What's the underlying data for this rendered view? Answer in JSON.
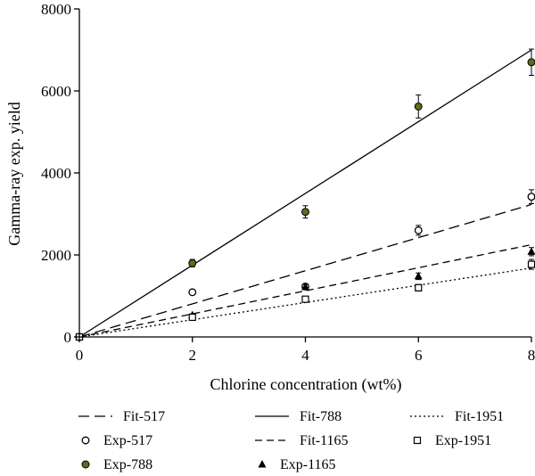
{
  "chart_data": {
    "type": "scatter",
    "title": "",
    "xlabel": "Chlorine concentration (wt%)",
    "ylabel": "Gamma-ray exp. yield",
    "xlim": [
      0,
      8
    ],
    "ylim": [
      0,
      8000
    ],
    "x_ticks": [
      0,
      2,
      4,
      6,
      8
    ],
    "y_ticks": [
      0,
      2000,
      4000,
      6000,
      8000
    ],
    "grid": false,
    "legend_placement": "bottom",
    "series": [
      {
        "name": "Fit-517",
        "kind": "line",
        "style": "long-dash",
        "x": [
          0,
          8
        ],
        "y": [
          0,
          3230
        ]
      },
      {
        "name": "Exp-517",
        "kind": "points",
        "marker": "open-circle",
        "x": [
          0,
          2,
          4,
          6,
          8
        ],
        "y": [
          0,
          1090,
          1230,
          2600,
          3420
        ],
        "err": [
          0,
          50,
          60,
          120,
          170
        ]
      },
      {
        "name": "Exp-788",
        "kind": "points",
        "marker": "filled-circle-green",
        "x": [
          0,
          2,
          4,
          6,
          8
        ],
        "y": [
          0,
          1800,
          3050,
          5620,
          6700
        ],
        "err": [
          0,
          90,
          150,
          280,
          320
        ]
      },
      {
        "name": "Fit-788",
        "kind": "line",
        "style": "solid",
        "x": [
          0,
          8
        ],
        "y": [
          0,
          7000
        ]
      },
      {
        "name": "Fit-1165",
        "kind": "line",
        "style": "short-dash",
        "x": [
          0,
          8
        ],
        "y": [
          0,
          2250
        ]
      },
      {
        "name": "Exp-1165",
        "kind": "points",
        "marker": "filled-triangle",
        "x": [
          0,
          2,
          4,
          6,
          8
        ],
        "y": [
          0,
          530,
          1220,
          1480,
          2080
        ],
        "err": [
          0,
          30,
          60,
          80,
          100
        ]
      },
      {
        "name": "Fit-1951",
        "kind": "line",
        "style": "dotted",
        "x": [
          0,
          8
        ],
        "y": [
          0,
          1680
        ]
      },
      {
        "name": "Exp-1951",
        "kind": "points",
        "marker": "open-square",
        "x": [
          0,
          2,
          4,
          6,
          8
        ],
        "y": [
          0,
          480,
          920,
          1200,
          1770
        ],
        "err": [
          0,
          30,
          50,
          80,
          120
        ]
      }
    ],
    "legend_order": [
      "Fit-517",
      "Exp-517",
      "Exp-788",
      "Fit-788",
      "Fit-1165",
      "Exp-1165",
      "Fit-1951",
      "Exp-1951"
    ],
    "colors": {
      "axis": "#000000",
      "exp_788_fill": "#5c6b1f"
    }
  }
}
